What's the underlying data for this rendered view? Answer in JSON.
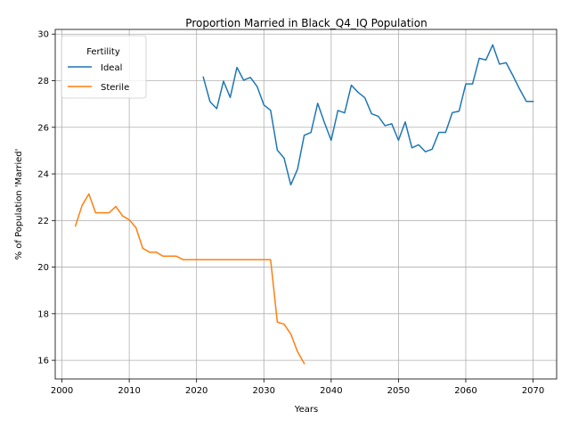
{
  "chart_data": {
    "type": "line",
    "title": "Proportion Married in Black_Q4_IQ Population",
    "xlabel": "Years",
    "ylabel": "% of Population 'Married'",
    "xlim": [
      1999,
      2073.5
    ],
    "ylim": [
      15.2,
      30.2
    ],
    "xticks": [
      2000,
      2010,
      2020,
      2030,
      2040,
      2050,
      2060,
      2070
    ],
    "yticks": [
      16,
      18,
      20,
      22,
      24,
      26,
      28,
      30
    ],
    "grid": true,
    "legend": {
      "title": "Fertility",
      "placement": "top-left"
    },
    "series": [
      {
        "name": "Ideal",
        "color": "#1f77b4",
        "x": [
          2021,
          2022,
          2023,
          2024,
          2025,
          2026,
          2027,
          2028,
          2029,
          2030,
          2031,
          2032,
          2033,
          2034,
          2035,
          2036,
          2037,
          2038,
          2039,
          2040,
          2041,
          2042,
          2043,
          2044,
          2045,
          2046,
          2047,
          2048,
          2049,
          2050,
          2051,
          2052,
          2053,
          2054,
          2055,
          2056,
          2057,
          2058,
          2059,
          2060,
          2061,
          2062,
          2063,
          2064,
          2065,
          2066,
          2067,
          2068,
          2069,
          2070
        ],
        "y": [
          28.15,
          27.1,
          26.8,
          27.98,
          27.28,
          28.57,
          28.02,
          28.14,
          27.75,
          26.96,
          26.73,
          25.02,
          24.68,
          23.53,
          24.2,
          25.66,
          25.78,
          27.03,
          26.2,
          25.44,
          26.72,
          26.62,
          27.81,
          27.5,
          27.27,
          26.58,
          26.47,
          26.07,
          26.15,
          25.44,
          26.23,
          25.12,
          25.25,
          24.95,
          25.06,
          25.78,
          25.78,
          26.63,
          26.69,
          27.86,
          27.86,
          28.96,
          28.89,
          29.54,
          28.71,
          28.77,
          28.22,
          27.64,
          27.11,
          27.11
        ]
      },
      {
        "name": "Sterile",
        "color": "#ff7f0e",
        "x": [
          2002,
          2003,
          2004,
          2005,
          2006,
          2007,
          2008,
          2009,
          2010,
          2011,
          2012,
          2013,
          2014,
          2015,
          2016,
          2017,
          2018,
          2019,
          2020,
          2021,
          2022,
          2023,
          2024,
          2025,
          2026,
          2027,
          2028,
          2029,
          2030,
          2031,
          2032,
          2033,
          2034,
          2035,
          2036
        ],
        "y": [
          21.77,
          22.65,
          23.14,
          22.33,
          22.33,
          22.33,
          22.6,
          22.2,
          22.03,
          21.69,
          20.81,
          20.64,
          20.64,
          20.47,
          20.47,
          20.47,
          20.32,
          20.32,
          20.32,
          20.32,
          20.32,
          20.32,
          20.32,
          20.32,
          20.32,
          20.32,
          20.32,
          20.32,
          20.32,
          20.32,
          17.64,
          17.55,
          17.13,
          16.37,
          15.86
        ]
      }
    ]
  }
}
